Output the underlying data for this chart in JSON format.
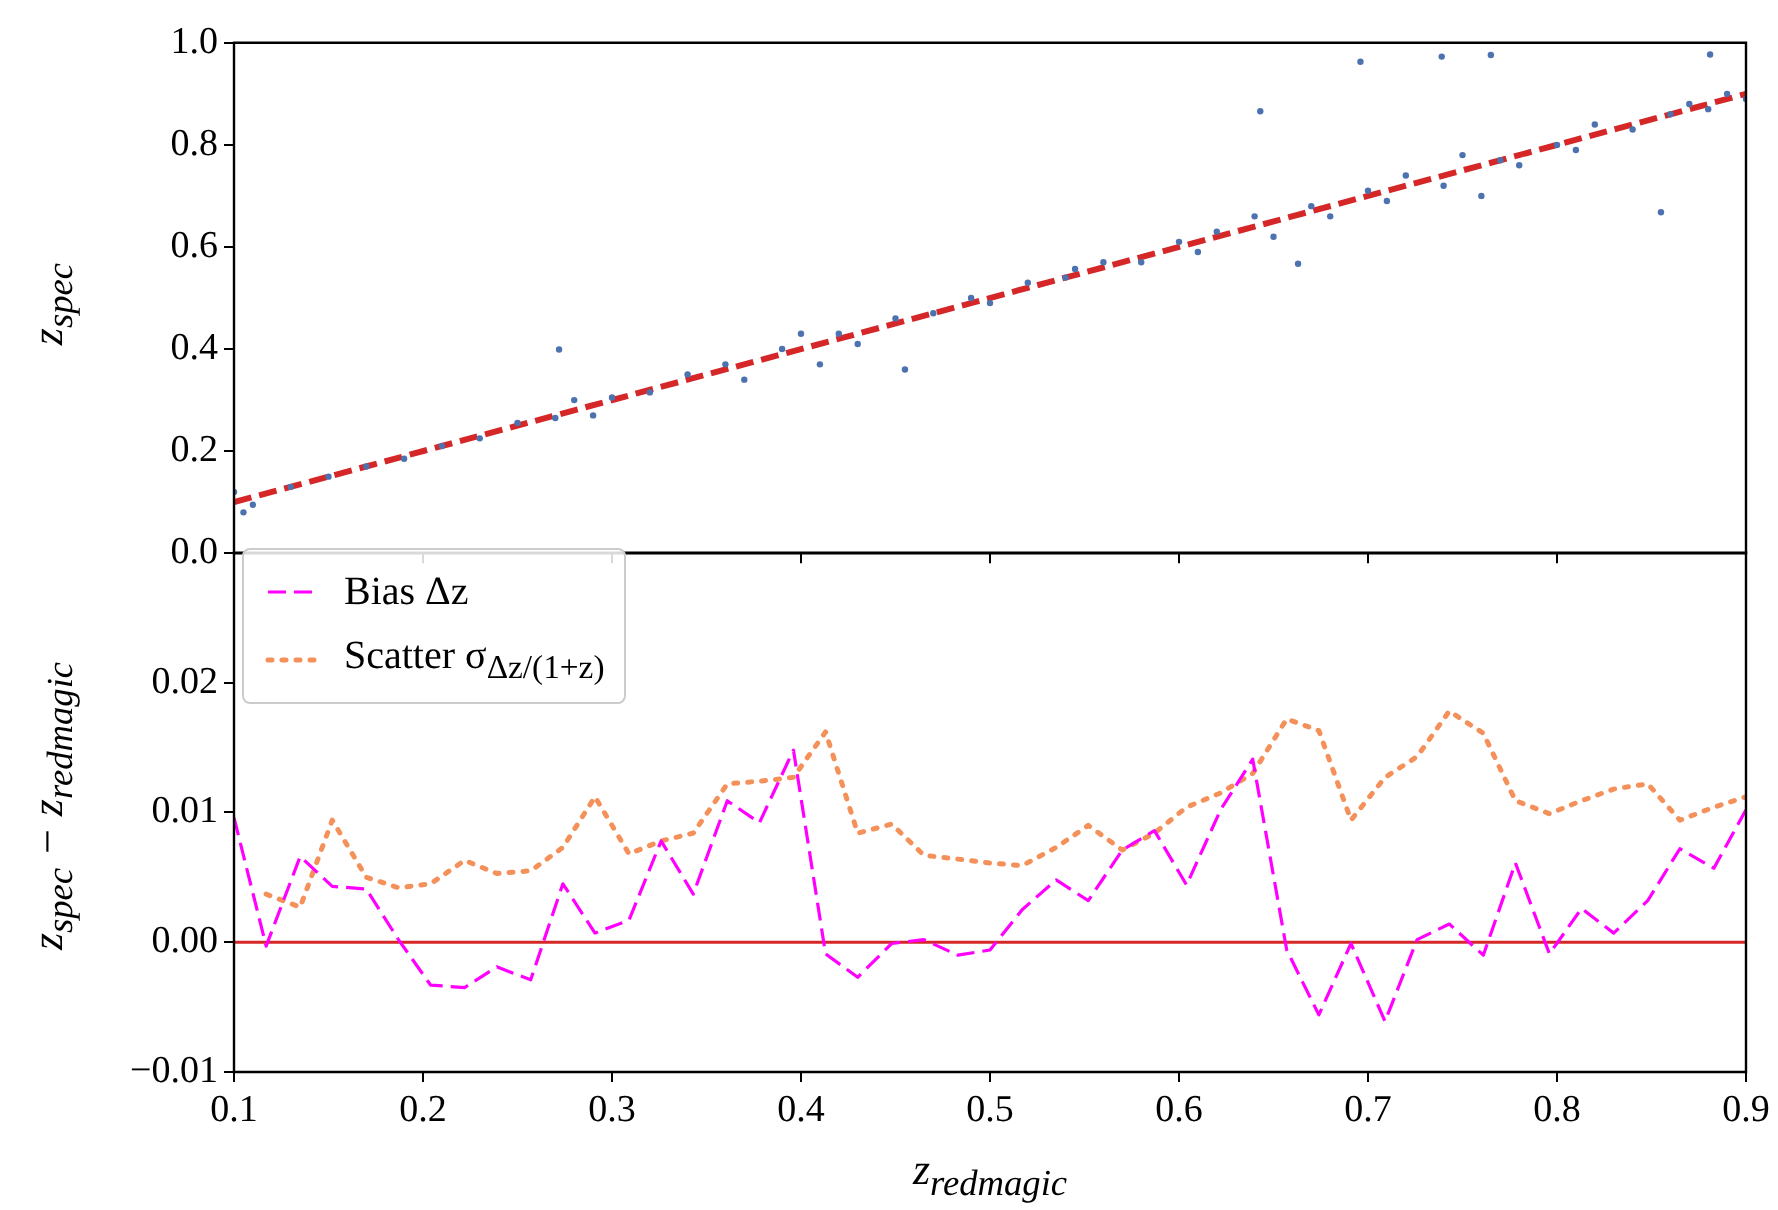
{
  "chart_data": [
    {
      "type": "scatter",
      "ylabel": "z$_{spec}$",
      "xlim": [
        0.1,
        0.9
      ],
      "ylim": [
        0,
        1
      ],
      "xticks": [
        0.1,
        0.2,
        0.3,
        0.4,
        0.5,
        0.6,
        0.7,
        0.8,
        0.9
      ],
      "yticks": [
        {
          "value": 0,
          "label": "0.0"
        },
        {
          "value": 0.2,
          "label": "0.2"
        },
        {
          "value": 0.4,
          "label": "0.4"
        },
        {
          "value": 0.6,
          "label": "0.6"
        },
        {
          "value": 0.8,
          "label": "0.8"
        },
        {
          "value": 1,
          "label": "1.0"
        }
      ],
      "tick_labels": "y",
      "grid": false,
      "legend": false,
      "series": [
        {
          "type": "scatter",
          "marker": "circle",
          "color": "#4c72b0",
          "x": [
            0.1,
            0.105,
            0.11,
            0.13,
            0.15,
            0.17,
            0.19,
            0.21,
            0.23,
            0.25,
            0.27,
            0.28,
            0.29,
            0.3,
            0.32,
            0.34,
            0.36,
            0.37,
            0.39,
            0.4,
            0.41,
            0.42,
            0.43,
            0.45,
            0.455,
            0.47,
            0.49,
            0.5,
            0.52,
            0.54,
            0.545,
            0.56,
            0.58,
            0.6,
            0.61,
            0.62,
            0.64,
            0.643,
            0.65,
            0.663,
            0.67,
            0.68,
            0.696,
            0.7,
            0.71,
            0.72,
            0.739,
            0.74,
            0.75,
            0.76,
            0.765,
            0.77,
            0.78,
            0.8,
            0.81,
            0.82,
            0.84,
            0.855,
            0.86,
            0.87,
            0.88,
            0.89,
            0.9,
            0.881,
            0.272
          ],
          "values": [
            0.12,
            0.08,
            0.095,
            0.13,
            0.15,
            0.17,
            0.185,
            0.21,
            0.225,
            0.255,
            0.265,
            0.3,
            0.27,
            0.305,
            0.315,
            0.35,
            0.37,
            0.34,
            0.4,
            0.43,
            0.37,
            0.43,
            0.41,
            0.46,
            0.36,
            0.47,
            0.5,
            0.49,
            0.53,
            0.54,
            0.557,
            0.57,
            0.57,
            0.61,
            0.59,
            0.63,
            0.66,
            0.866,
            0.62,
            0.567,
            0.68,
            0.66,
            0.963,
            0.71,
            0.69,
            0.74,
            0.973,
            0.72,
            0.78,
            0.7,
            0.976,
            0.77,
            0.76,
            0.8,
            0.79,
            0.84,
            0.83,
            0.668,
            0.86,
            0.88,
            0.87,
            0.9,
            0.89,
            0.977,
            0.399
          ]
        },
        {
          "type": "line",
          "marker": "none",
          "color": "#d62728",
          "line_style": "dashed",
          "x": [
            0.1,
            0.9
          ],
          "values": [
            0.1,
            0.9
          ]
        }
      ]
    },
    {
      "type": "line",
      "xlabel": "z$_{redmagic}$",
      "ylabel": "z$_{spec}$ − z$_{redmagic}$",
      "xlim": [
        0.1,
        0.9
      ],
      "ylim": [
        -0.01,
        0.03
      ],
      "xticks": [
        0.1,
        0.2,
        0.3,
        0.4,
        0.5,
        0.6,
        0.7,
        0.8,
        0.9
      ],
      "yticks": [
        {
          "value": -0.01,
          "label": "−0.01"
        },
        {
          "value": 0,
          "label": "0.00"
        },
        {
          "value": 0.01,
          "label": "0.01"
        },
        {
          "value": 0.02,
          "label": "0.02"
        },
        {
          "value": 0.03,
          "label": null
        }
      ],
      "grid": false,
      "legend": "top left",
      "x": [
        0.1,
        0.117,
        0.135,
        0.152,
        0.17,
        0.187,
        0.204,
        0.222,
        0.239,
        0.257,
        0.274,
        0.291,
        0.309,
        0.326,
        0.343,
        0.361,
        0.378,
        0.396,
        0.413,
        0.43,
        0.448,
        0.465,
        0.483,
        0.5,
        0.517,
        0.535,
        0.552,
        0.57,
        0.587,
        0.604,
        0.622,
        0.639,
        0.657,
        0.674,
        0.691,
        0.709,
        0.726,
        0.743,
        0.761,
        0.778,
        0.796,
        0.813,
        0.83,
        0.848,
        0.865,
        0.883,
        0.9
      ],
      "ref_lines": [
        {
          "axis": "y",
          "value": 0,
          "color": "#d62728",
          "line_style": "solid"
        }
      ],
      "series": [
        {
          "name": "Bias Δz",
          "color": "#ff00ff",
          "line_style": "dashed",
          "values": [
            0.0096,
            -0.0003,
            0.0066,
            0.0043,
            0.0041,
            0.0002,
            -0.0033,
            -0.0035,
            -0.0019,
            -0.0029,
            0.0045,
            0.0007,
            0.0017,
            0.0078,
            0.0037,
            0.0109,
            0.0092,
            0.0148,
            -0.0009,
            -0.0027,
            -0.0001,
            0.0002,
            -0.001,
            -0.0006,
            0.0025,
            0.0048,
            0.0032,
            0.0071,
            0.0086,
            0.0044,
            0.0102,
            0.0141,
            -0.0006,
            -0.0056,
            -0.0001,
            -0.0061,
            0.0002,
            0.0014,
            -0.001,
            0.0061,
            -0.0009,
            0.0026,
            0.0007,
            0.0032,
            0.0072,
            0.0057,
            0.0102
          ]
        },
        {
          "name": "Scatter σ$_{Δz/(1+z)}$",
          "color": "#f4915a",
          "line_style": "dotted",
          "values": [
            null,
            0.0037,
            0.0027,
            0.0094,
            0.005,
            0.0042,
            0.0045,
            0.0063,
            0.0053,
            0.0055,
            0.0073,
            0.0112,
            0.0068,
            0.0078,
            0.0084,
            0.0122,
            0.0124,
            0.0127,
            0.0162,
            0.0084,
            0.0091,
            0.0067,
            0.0064,
            0.0061,
            0.0059,
            0.0073,
            0.009,
            0.0071,
            0.0084,
            0.0104,
            0.0115,
            0.013,
            0.0172,
            0.0163,
            0.0094,
            0.0127,
            0.0143,
            0.0178,
            0.0161,
            0.0109,
            0.0099,
            0.0109,
            0.0118,
            0.0122,
            0.0094,
            0.0104,
            0.0112
          ]
        }
      ]
    }
  ]
}
